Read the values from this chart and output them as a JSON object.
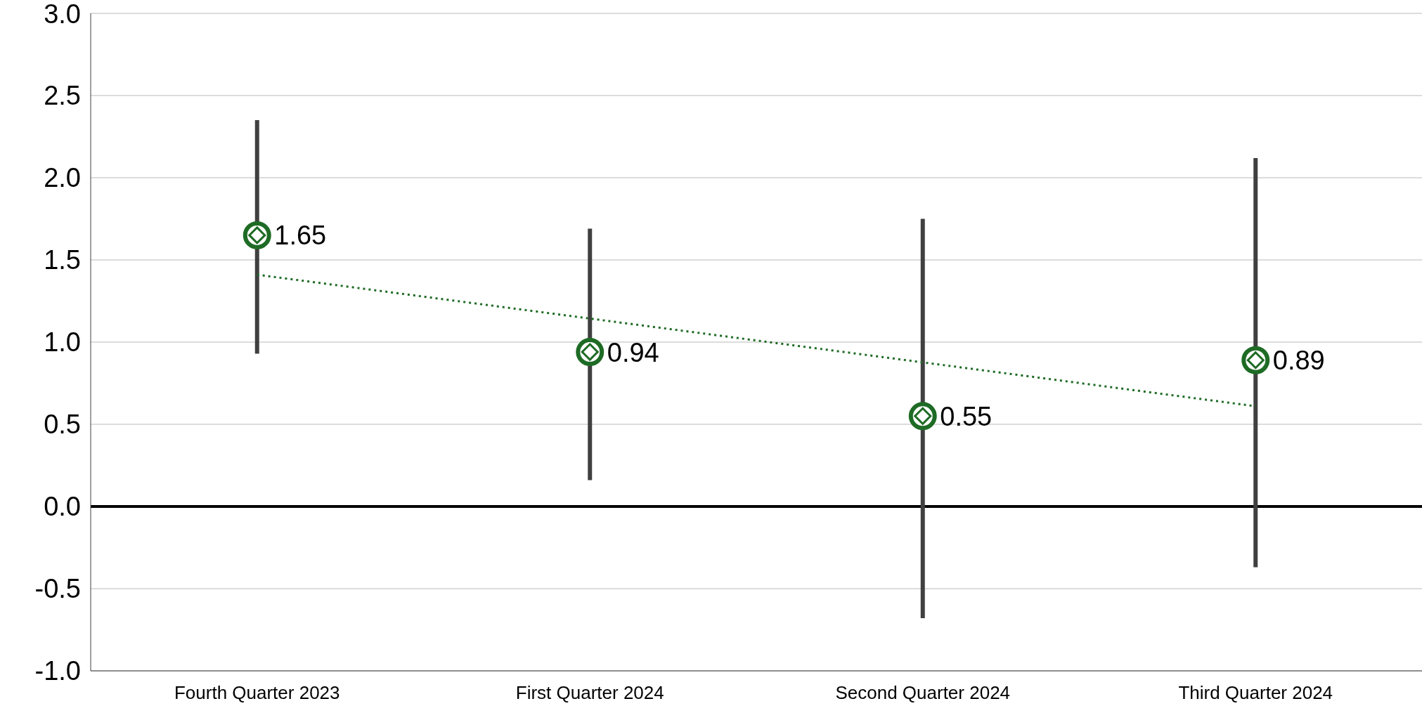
{
  "chart_data": {
    "type": "scatter",
    "categories": [
      "Fourth Quarter 2023",
      "First Quarter 2024",
      "Second Quarter 2024",
      "Third Quarter 2024"
    ],
    "series": [
      {
        "color": "#1e6b25",
        "values": [
          1.65,
          0.94,
          0.55,
          0.89
        ],
        "value_labels": [
          "1.65",
          "0.94",
          "0.55",
          "0.89"
        ],
        "errors": [
          [
            0.93,
            2.35
          ],
          [
            0.16,
            1.69
          ],
          [
            -0.68,
            1.75
          ],
          [
            -0.37,
            2.12
          ]
        ],
        "marker": "circle"
      },
      {
        "type": "line",
        "color": "#1e6b25",
        "x": [
          "Fourth Quarter 2023",
          "Third Quarter 2024"
        ],
        "values": [
          1.41,
          0.61
        ],
        "line_style": "dotted",
        "marker": "none"
      }
    ],
    "ylim": [
      -1,
      3
    ],
    "yticks": [
      {
        "value": -1,
        "label": "-1.0"
      },
      {
        "value": -0.5,
        "label": "-0.5"
      },
      {
        "value": 0,
        "label": "0.0"
      },
      {
        "value": 0.5,
        "label": "0.5"
      },
      {
        "value": 1,
        "label": "1.0"
      },
      {
        "value": 1.5,
        "label": "1.5"
      },
      {
        "value": 2,
        "label": "2.0"
      },
      {
        "value": 2.5,
        "label": "2.5"
      },
      {
        "value": 3,
        "label": "3.0"
      }
    ],
    "grid": "y",
    "ref_lines": [
      {
        "axis": "y",
        "value": 0,
        "label": null,
        "color": "#000000",
        "line_style": "solid"
      }
    ]
  }
}
